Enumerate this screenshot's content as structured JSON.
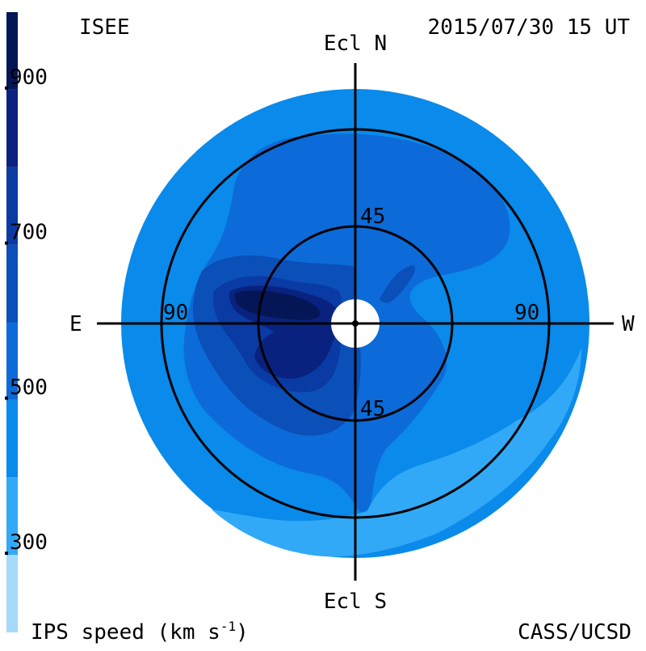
{
  "header": {
    "left_label": "ISEE",
    "datetime": "2015/07/30 15 UT"
  },
  "footer": {
    "colorbar_label": "IPS speed (km s",
    "colorbar_unit_exponent": "-1",
    "colorbar_label_close": ")",
    "credit": "CASS/UCSD"
  },
  "colorbar": {
    "ticks": [
      {
        "label": "900",
        "value": 900
      },
      {
        "label": "700",
        "value": 700
      },
      {
        "label": "500",
        "value": 500
      },
      {
        "label": "300",
        "value": 300
      }
    ],
    "range_km_s": [
      200,
      1000
    ],
    "step_km_s": 100,
    "band_colors": [
      "#a6daf8",
      "#31a9f7",
      "#0a8aea",
      "#0c6bd8",
      "#0b4fb9",
      "#0a3aa3",
      "#09227f",
      "#051657",
      "#030a33"
    ]
  },
  "map": {
    "directions": {
      "north": "Ecl N",
      "south": "Ecl S",
      "east": "E",
      "west": "W"
    },
    "ring_labels": {
      "inner_north": "45",
      "inner_south": "45",
      "outer_east": "90",
      "outer_west": "90"
    },
    "colors": {
      "background_speed": "#0a8aea",
      "edge_slow": "#31a9f7",
      "medium": "#0c6bd8",
      "fast": "#0b4fb9",
      "faster": "#0a3aa3",
      "fastest": "#09227f",
      "peak": "#051657"
    }
  }
}
